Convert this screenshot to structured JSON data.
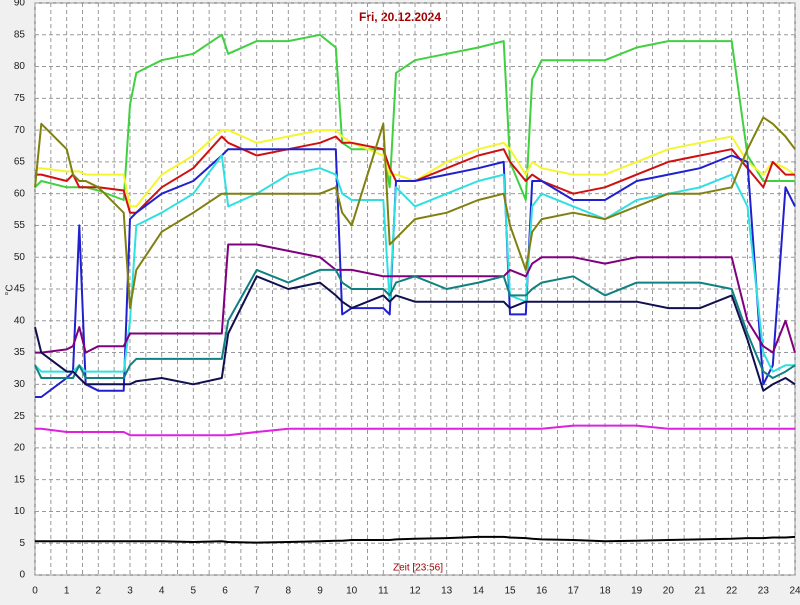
{
  "chart_data": {
    "type": "line",
    "title": "Fri, 20.12.2024",
    "xlabel": "Zeit [23:56]",
    "ylabel": "°C",
    "xlim": [
      0,
      24
    ],
    "ylim": [
      0,
      90
    ],
    "xticks": [
      0,
      1,
      2,
      3,
      4,
      5,
      6,
      7,
      8,
      9,
      10,
      11,
      12,
      13,
      14,
      15,
      16,
      17,
      18,
      19,
      20,
      21,
      22,
      23,
      24
    ],
    "yticks": [
      0,
      5,
      10,
      15,
      20,
      25,
      30,
      35,
      40,
      45,
      50,
      55,
      60,
      65,
      70,
      75,
      80,
      85,
      90
    ],
    "grid": true,
    "x": [
      0,
      0.2,
      1,
      1.2,
      1.4,
      1.6,
      2,
      2.8,
      3,
      3.2,
      4,
      5,
      5.9,
      6.1,
      7,
      8,
      9,
      9.5,
      9.7,
      10,
      11,
      11.2,
      11.4,
      12,
      13,
      14,
      14.8,
      15,
      15.5,
      15.7,
      16,
      17,
      18,
      19,
      20,
      21,
      22,
      22.5,
      23,
      23.3,
      23.7,
      24
    ],
    "series": [
      {
        "color": "#40d040",
        "values": [
          61,
          62,
          61,
          61,
          61,
          61,
          60.5,
          59,
          74,
          79,
          81,
          82,
          85,
          82,
          84,
          84,
          85,
          83,
          68,
          67,
          67,
          61,
          79,
          81,
          82,
          83,
          84,
          65,
          59,
          78,
          81,
          81,
          81,
          83,
          84,
          84,
          84,
          66,
          62,
          62,
          62,
          62
        ]
      },
      {
        "color": "#f5f530",
        "values": [
          64,
          64,
          63.5,
          63.5,
          63.5,
          63,
          63,
          63,
          58,
          58,
          63,
          66,
          70,
          70,
          68,
          69,
          70,
          70,
          69,
          68,
          66,
          63,
          63,
          62,
          65,
          67,
          68,
          67,
          63,
          65,
          64,
          63,
          63,
          65,
          67,
          68,
          69,
          65,
          63,
          65,
          64,
          63
        ]
      },
      {
        "color": "#d01010",
        "values": [
          63,
          63,
          62,
          63,
          61,
          61,
          61,
          60.5,
          57,
          57,
          61,
          64,
          69,
          68,
          66,
          67,
          68,
          69,
          68,
          68,
          67,
          64,
          62,
          62,
          64,
          66,
          67,
          65,
          62,
          63,
          62,
          60,
          61,
          63,
          65,
          66,
          67,
          64,
          61,
          65,
          63,
          63
        ]
      },
      {
        "color": "#2020d0",
        "values": [
          28,
          28,
          31,
          32,
          55,
          30,
          29,
          29,
          56,
          57,
          60,
          62,
          66,
          67,
          67,
          67,
          67,
          67,
          41,
          42,
          42,
          41,
          62,
          62,
          63,
          64,
          65,
          41,
          41,
          62,
          62,
          59,
          59,
          62,
          63,
          64,
          66,
          65,
          30,
          33,
          61,
          58
        ]
      },
      {
        "color": "#30e0e0",
        "values": [
          33,
          32,
          32,
          32,
          33,
          32,
          32,
          32,
          40,
          55,
          57,
          60,
          66,
          58,
          60,
          63,
          64,
          63,
          60,
          59,
          59,
          43,
          61,
          58,
          60,
          62,
          63,
          44,
          43,
          58,
          60,
          58,
          56,
          59,
          60,
          61,
          63,
          58,
          35,
          32,
          33,
          33
        ]
      },
      {
        "color": "#808010",
        "values": [
          61,
          71,
          67,
          63,
          62,
          62,
          61,
          57,
          42,
          48,
          54,
          57,
          60,
          60,
          60,
          60,
          60,
          61,
          57,
          55,
          71,
          52,
          53,
          56,
          57,
          59,
          60,
          55,
          48,
          54,
          56,
          57,
          56,
          58,
          60,
          60,
          61,
          67,
          72,
          71,
          69,
          67
        ]
      },
      {
        "color": "#800080",
        "values": [
          35,
          35,
          35.5,
          36,
          39,
          35,
          36,
          36,
          38,
          38,
          38,
          38,
          38,
          52,
          52,
          51,
          50,
          48,
          48,
          48,
          47,
          47,
          47,
          47,
          47,
          47,
          47,
          48,
          47,
          49,
          50,
          50,
          49,
          50,
          50,
          50,
          50,
          40,
          36,
          35,
          40,
          35
        ]
      },
      {
        "color": "#108080",
        "values": [
          33,
          31,
          31,
          31,
          33,
          31,
          31,
          31,
          33,
          34,
          34,
          34,
          34,
          40,
          48,
          46,
          48,
          48,
          46,
          45,
          45,
          44,
          46,
          47,
          45,
          46,
          47,
          44,
          44,
          45,
          46,
          47,
          44,
          46,
          46,
          46,
          45,
          38,
          32,
          31,
          32,
          33
        ]
      },
      {
        "color": "#101050",
        "values": [
          39,
          35,
          32,
          32,
          31,
          30,
          30,
          30,
          30,
          30.5,
          31,
          30,
          31,
          38,
          47,
          45,
          46,
          44,
          43,
          42,
          44,
          43,
          44,
          43,
          43,
          43,
          43,
          42,
          43,
          43,
          43,
          43,
          43,
          43,
          42,
          42,
          44,
          37,
          29,
          30,
          31,
          30
        ]
      },
      {
        "color": "#e020e0",
        "values": [
          23,
          23,
          22.5,
          22.5,
          22.5,
          22.5,
          22.5,
          22.5,
          22,
          22,
          22,
          22,
          22,
          22,
          22.5,
          23,
          23,
          23,
          23,
          23,
          23,
          23,
          23,
          23,
          23,
          23,
          23,
          23,
          23,
          23,
          23,
          23.5,
          23.5,
          23.5,
          23,
          23,
          23,
          23,
          23,
          23,
          23,
          23
        ]
      },
      {
        "color": "#000000",
        "values": [
          5.3,
          5.3,
          5.3,
          5.3,
          5.3,
          5.3,
          5.3,
          5.3,
          5.3,
          5.3,
          5.3,
          5.2,
          5.3,
          5.2,
          5.1,
          5.2,
          5.3,
          5.4,
          5.4,
          5.5,
          5.5,
          5.5,
          5.6,
          5.7,
          5.8,
          6,
          6,
          5.9,
          5.8,
          5.7,
          5.6,
          5.5,
          5.3,
          5.4,
          5.5,
          5.6,
          5.7,
          5.8,
          5.8,
          5.9,
          5.9,
          6
        ]
      }
    ]
  }
}
